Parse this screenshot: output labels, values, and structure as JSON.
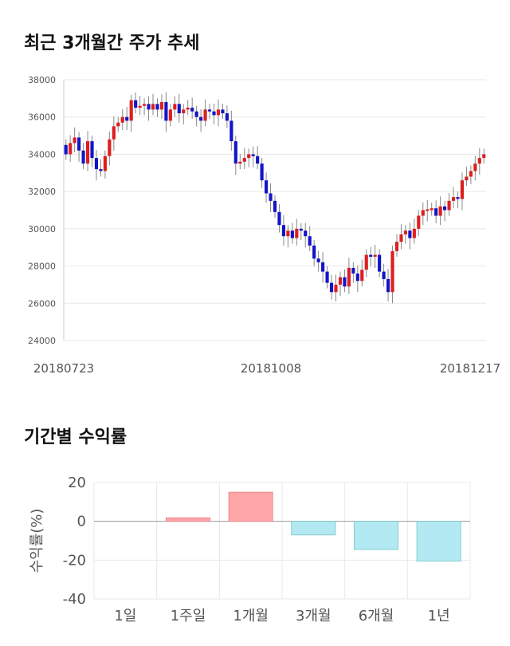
{
  "sections": {
    "price_trend_title": "최근 3개월간 주가 추세",
    "returns_title": "기간별 수익률"
  },
  "colors": {
    "up": "#dd1f1f",
    "down": "#1414c8",
    "positive_bar": "#ffa6a9",
    "negative_bar": "#b3e9f3",
    "grid": "#e8e8e8"
  },
  "chart_data": [
    {
      "type": "candlestick",
      "title": "",
      "xlabel": "",
      "ylabel": "",
      "ylim": [
        24000,
        38000
      ],
      "yticks": [
        "38000",
        "36000",
        "34000",
        "32000",
        "30000",
        "28000",
        "26000",
        "24000"
      ],
      "x_tick_labels": [
        "20180723",
        "20181008",
        "20181217"
      ],
      "grid": true,
      "closes": [
        34000,
        34600,
        34900,
        34200,
        33500,
        34700,
        33800,
        33200,
        33100,
        33900,
        34800,
        35500,
        35700,
        36000,
        35800,
        36900,
        36500,
        36600,
        36700,
        36400,
        36700,
        36400,
        36800,
        35800,
        36400,
        36700,
        36200,
        36400,
        36500,
        36300,
        36000,
        35800,
        36400,
        36300,
        36100,
        36400,
        36200,
        35800,
        34700,
        33500,
        33600,
        33800,
        34000,
        33900,
        33500,
        32600,
        31900,
        31500,
        30900,
        30200,
        29600,
        29900,
        29500,
        30000,
        29900,
        29600,
        29100,
        28400,
        28200,
        27700,
        27100,
        26600,
        27000,
        27400,
        26900,
        27900,
        27600,
        27200,
        27800,
        28600,
        28500,
        28600,
        27700,
        27300,
        26600,
        28800,
        29300,
        29700,
        29900,
        29500,
        30000,
        30700,
        31000,
        31000,
        31100,
        30700,
        31200,
        31000,
        31500,
        31700,
        31600,
        32600,
        32800,
        33100,
        33500,
        33800,
        34000
      ],
      "returns": {
        "type": "bar",
        "categories": [
          "1일",
          "1주일",
          "1개월",
          "3개월",
          "6개월",
          "1년"
        ],
        "values": [
          0,
          1.8,
          15,
          -7,
          -14.5,
          -20.5
        ],
        "yticks": [
          "20",
          "0",
          "-20",
          "-40"
        ],
        "ylim": [
          -40,
          20
        ],
        "ylabel": "수익률(%)"
      }
    }
  ]
}
